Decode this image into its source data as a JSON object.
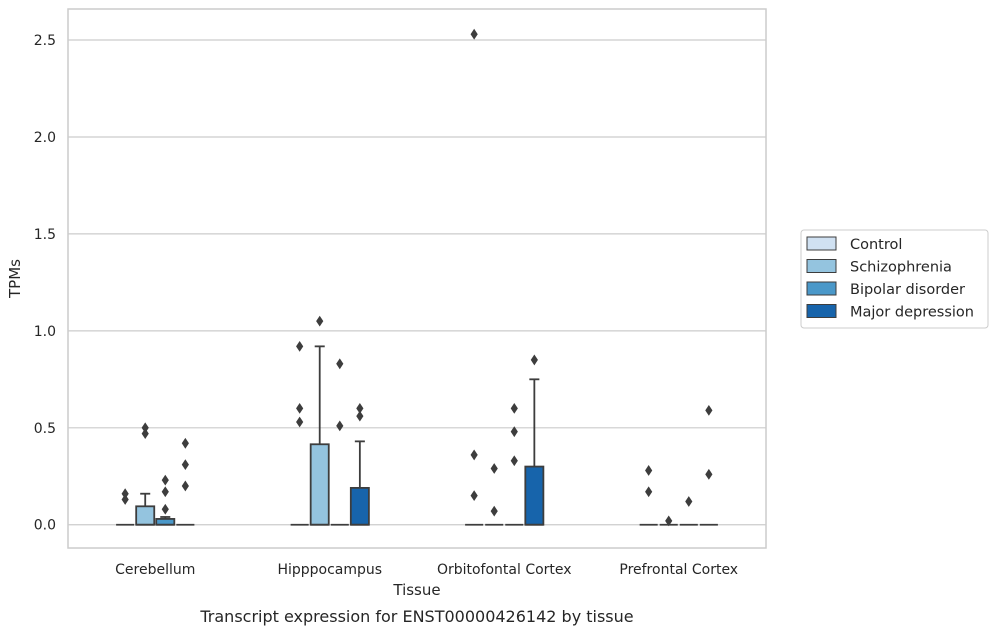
{
  "chart_data": {
    "type": "box",
    "title": "Transcript expression for ENST00000426142 by tissue",
    "xlabel": "Tissue",
    "ylabel": "TPMs",
    "categories": [
      "Cerebellum",
      "Hipppocampus",
      "Orbitofontal Cortex",
      "Prefrontal Cortex"
    ],
    "yticks": [
      "0.0",
      "0.5",
      "1.0",
      "1.5",
      "2.0",
      "2.5"
    ],
    "ytick_values": [
      0,
      0.5,
      1.0,
      1.5,
      2.0,
      2.5
    ],
    "ylim": [
      -0.12,
      2.66
    ],
    "grid": "horizontal",
    "legend_position": "right",
    "series": [
      {
        "name": "Control",
        "color": "#d0e1f2",
        "boxes": [
          {
            "q1": 0,
            "median": 0,
            "q3": 0,
            "whisker_low": 0,
            "whisker_high": 0,
            "outliers": [
              0.13,
              0.16
            ]
          },
          {
            "q1": 0,
            "median": 0,
            "q3": 0,
            "whisker_low": 0,
            "whisker_high": 0,
            "outliers": [
              0.53,
              0.6,
              0.92
            ]
          },
          {
            "q1": 0,
            "median": 0,
            "q3": 0,
            "whisker_low": 0,
            "whisker_high": 0,
            "outliers": [
              0.15,
              0.36,
              2.53
            ]
          },
          {
            "q1": 0,
            "median": 0,
            "q3": 0,
            "whisker_low": 0,
            "whisker_high": 0,
            "outliers": [
              0.17,
              0.28
            ]
          }
        ]
      },
      {
        "name": "Schizophrenia",
        "color": "#94c4df",
        "boxes": [
          {
            "q1": 0,
            "median": 0,
            "q3": 0.095,
            "whisker_low": 0,
            "whisker_high": 0.16,
            "outliers": [
              0.47,
              0.5
            ]
          },
          {
            "q1": 0,
            "median": 0,
            "q3": 0.415,
            "whisker_low": 0,
            "whisker_high": 0.92,
            "outliers": [
              1.05
            ]
          },
          {
            "q1": 0,
            "median": 0,
            "q3": 0,
            "whisker_low": 0,
            "whisker_high": 0,
            "outliers": [
              0.07,
              0.29
            ]
          },
          {
            "q1": 0,
            "median": 0,
            "q3": 0,
            "whisker_low": 0,
            "whisker_high": 0,
            "outliers": [
              0.02
            ]
          }
        ]
      },
      {
        "name": "Bipolar disorder",
        "color": "#4a98c9",
        "boxes": [
          {
            "q1": 0,
            "median": 0,
            "q3": 0.03,
            "whisker_low": 0,
            "whisker_high": 0.04,
            "outliers": [
              0.08,
              0.17,
              0.23
            ]
          },
          {
            "q1": 0,
            "median": 0,
            "q3": 0,
            "whisker_low": 0,
            "whisker_high": 0,
            "outliers": [
              0.51,
              0.83
            ]
          },
          {
            "q1": 0,
            "median": 0,
            "q3": 0,
            "whisker_low": 0,
            "whisker_high": 0,
            "outliers": [
              0.33,
              0.48,
              0.6
            ]
          },
          {
            "q1": 0,
            "median": 0,
            "q3": 0,
            "whisker_low": 0,
            "whisker_high": 0,
            "outliers": [
              0.12
            ]
          }
        ]
      },
      {
        "name": "Major depression",
        "color": "#1764ab",
        "boxes": [
          {
            "q1": 0,
            "median": 0,
            "q3": 0,
            "whisker_low": 0,
            "whisker_high": 0,
            "outliers": [
              0.2,
              0.31,
              0.42
            ]
          },
          {
            "q1": 0,
            "median": 0,
            "q3": 0.19,
            "whisker_low": 0,
            "whisker_high": 0.43,
            "outliers": [
              0.56,
              0.6
            ]
          },
          {
            "q1": 0,
            "median": 0,
            "q3": 0.3,
            "whisker_low": 0,
            "whisker_high": 0.75,
            "outliers": [
              0.85
            ]
          },
          {
            "q1": 0,
            "median": 0,
            "q3": 0,
            "whisker_low": 0,
            "whisker_high": 0,
            "outliers": [
              0.26,
              0.59
            ]
          }
        ]
      }
    ]
  }
}
